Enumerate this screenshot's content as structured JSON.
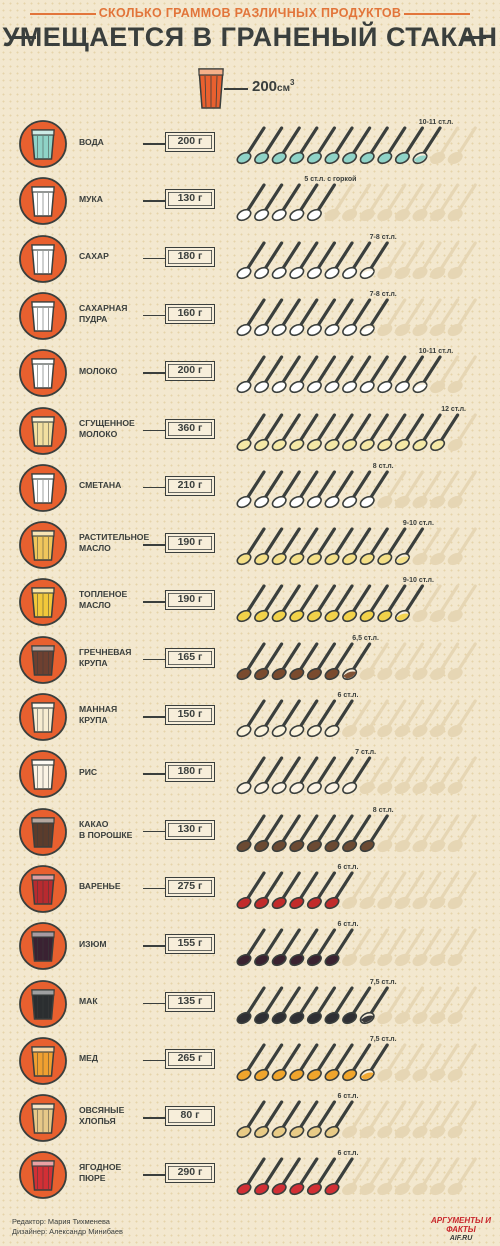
{
  "header": {
    "subtitle": "СКОЛЬКО ГРАММОВ РАЗЛИЧНЫХ ПРОДУКТОВ",
    "title": "УМЕЩАЕТСЯ В ГРАНЕНЫЙ СТАКАН"
  },
  "legend": {
    "volume": "200",
    "unit": "см",
    "unit_sup": "3"
  },
  "colors": {
    "ink": "#3a3f3d",
    "accent": "#e2753a",
    "circle": "#e8602f",
    "spoon_empty": "#e6d6b4"
  },
  "items": [
    {
      "name": "ВОДА",
      "weight": "200 г",
      "spoons": 10.5,
      "label": "10-11 ст.л.",
      "fill": "#8fd3c7",
      "glass": "#8fd3c7"
    },
    {
      "name": "МУКА",
      "weight": "130 г",
      "spoons": 5,
      "label": "5 ст.л. с горкой",
      "fill": "#ffffff",
      "glass": "#ffffff"
    },
    {
      "name": "САХАР",
      "weight": "180 г",
      "spoons": 7.5,
      "label": "7-8 ст.л.",
      "fill": "#ffffff",
      "glass": "#ffffff"
    },
    {
      "name": "САХАРНАЯ\nПУДРА",
      "weight": "160 г",
      "spoons": 7.5,
      "label": "7-8 ст.л.",
      "fill": "#ffffff",
      "glass": "#ffffff"
    },
    {
      "name": "МОЛОКО",
      "weight": "200 г",
      "spoons": 10.5,
      "label": "10-11 ст.л.",
      "fill": "#ffffff",
      "glass": "#ffffff"
    },
    {
      "name": "СГУЩЕННОЕ\nМОЛОКО",
      "weight": "360 г",
      "spoons": 12,
      "label": "12 ст.л.",
      "fill": "#f4e8a6",
      "glass": "#f2dfa0"
    },
    {
      "name": "СМЕТАНА",
      "weight": "210 г",
      "spoons": 8,
      "label": "8 ст.л.",
      "fill": "#ffffff",
      "glass": "#ffffff"
    },
    {
      "name": "РАСТИТЕЛЬНОЕ\nМАСЛО",
      "weight": "190 г",
      "spoons": 9.5,
      "label": "9-10 ст.л.",
      "fill": "#f4df86",
      "glass": "#f0c65c"
    },
    {
      "name": "ТОПЛЕНОЕ\nМАСЛО",
      "weight": "190 г",
      "spoons": 9.5,
      "label": "9-10 ст.л.",
      "fill": "#f2d24a",
      "glass": "#f2c83a"
    },
    {
      "name": "ГРЕЧНЕВАЯ\nКРУПА",
      "weight": "165 г",
      "spoons": 6.5,
      "label": "6,5 ст.л.",
      "fill": "#7a4b2e",
      "glass": "#6e4030"
    },
    {
      "name": "МАННАЯ\nКРУПА",
      "weight": "150 г",
      "spoons": 6,
      "label": "6 ст.л.",
      "fill": "#fbf3dc",
      "glass": "#f7ecd0"
    },
    {
      "name": "РИС",
      "weight": "180 г",
      "spoons": 7,
      "label": "7 ст.л.",
      "fill": "#fbf3e4",
      "glass": "#fbf3e4"
    },
    {
      "name": "КАКАО\nВ ПОРОШКЕ",
      "weight": "130 г",
      "spoons": 8,
      "label": "8 ст.л.",
      "fill": "#6b4a33",
      "glass": "#5b3c2c"
    },
    {
      "name": "ВАРЕНЬЕ",
      "weight": "275 г",
      "spoons": 6,
      "label": "6 ст.л.",
      "fill": "#c22b2b",
      "glass": "#b82a2f"
    },
    {
      "name": "ИЗЮМ",
      "weight": "155 г",
      "spoons": 6,
      "label": "6 ст.л.",
      "fill": "#3a2230",
      "glass": "#3a2232"
    },
    {
      "name": "МАК",
      "weight": "135 г",
      "spoons": 7.5,
      "label": "7,5 ст.л.",
      "fill": "#2f2f33",
      "glass": "#2b2e30"
    },
    {
      "name": "МЕД",
      "weight": "265 г",
      "spoons": 7.5,
      "label": "7,5 ст.л.",
      "fill": "#f0a52c",
      "glass": "#f0a030"
    },
    {
      "name": "ОВСЯНЫЕ\nХЛОПЬЯ",
      "weight": "80 г",
      "spoons": 6,
      "label": "6 ст.л.",
      "fill": "#e8cb86",
      "glass": "#e6c888"
    },
    {
      "name": "ЯГОДНОЕ\nПЮРЕ",
      "weight": "290 г",
      "spoons": 6,
      "label": "6 ст.л.",
      "fill": "#d22f35",
      "glass": "#d22f35"
    }
  ],
  "footer": {
    "editor": "Редактор: Мария Тихменева",
    "designer": "Дизайнер: Александр Минибаев",
    "logo_line1": "АРГУМЕНТЫ И ФАКТЫ",
    "logo_line2": "AIF.RU"
  }
}
